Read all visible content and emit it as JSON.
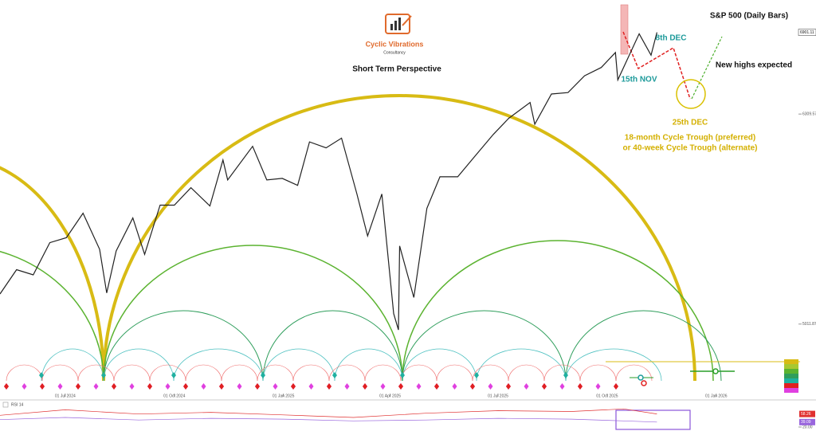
{
  "chart_data": [
    {
      "type": "line",
      "title": "S&P 500 (Daily Bars)",
      "subtitle": "Short Term Perspective",
      "brand": "Cyclic Vibrations",
      "brand_sub": "Consultancy",
      "annotations": [
        "8th DEC",
        "15th NOV",
        "New highs expected",
        "25th DEC",
        "18-month Cycle Trough (preferred)",
        "or 40-week Cycle Trough (alternate)"
      ],
      "log_scale": true,
      "xlim": [
        "2024-05-07",
        "2026-03-10"
      ],
      "xticks": [
        {
          "value": "2024-07-01",
          "label": "01 Jul 2024"
        },
        {
          "value": "2024-10-01",
          "label": "01 Oct 2024"
        },
        {
          "value": "2025-01-01",
          "label": "01 Jan 2025"
        },
        {
          "value": "2025-04-01",
          "label": "01 Apr 2025"
        },
        {
          "value": "2025-07-01",
          "label": "01 Jul 2025"
        },
        {
          "value": "2025-10-01",
          "label": "01 Oct 2025"
        },
        {
          "value": "2026-01-01",
          "label": "01 Jan 2026"
        }
      ],
      "ylim": [
        4620,
        7150
      ],
      "yticks": [
        6309.57,
        5011.87
      ],
      "x": [
        "2024-05-07",
        "2024-05-21",
        "2024-06-04",
        "2024-06-18",
        "2024-07-02",
        "2024-07-16",
        "2024-07-30",
        "2024-08-05",
        "2024-08-13",
        "2024-08-27",
        "2024-09-06",
        "2024-09-19",
        "2024-10-01",
        "2024-10-15",
        "2024-10-31",
        "2024-11-11",
        "2024-11-15",
        "2024-12-06",
        "2024-12-18",
        "2024-12-31",
        "2025-01-13",
        "2025-01-23",
        "2025-02-06",
        "2025-02-19",
        "2025-03-04",
        "2025-03-13",
        "2025-03-25",
        "2025-04-04",
        "2025-04-08",
        "2025-04-09",
        "2025-04-21",
        "2025-05-02",
        "2025-05-13",
        "2025-05-28",
        "2025-06-11",
        "2025-06-27",
        "2025-07-10",
        "2025-07-28",
        "2025-08-01",
        "2025-08-15",
        "2025-08-29",
        "2025-09-12",
        "2025-09-26",
        "2025-10-08",
        "2025-10-10",
        "2025-10-28",
        "2025-11-07",
        "2025-11-12"
      ],
      "series": [
        {
          "color": "#222222",
          "values": [
            5180,
            5320,
            5290,
            5480,
            5510,
            5660,
            5440,
            5186,
            5430,
            5630,
            5410,
            5710,
            5710,
            5820,
            5705,
            6000,
            5870,
            6090,
            5870,
            5880,
            5835,
            6120,
            6080,
            6145,
            5780,
            5520,
            5780,
            5070,
            4980,
            5460,
            5160,
            5690,
            5890,
            5890,
            6020,
            6170,
            6280,
            6390,
            6240,
            6450,
            6460,
            6580,
            6640,
            6750,
            6550,
            6890,
            6730,
            6901.11
          ]
        }
      ]
    },
    {
      "type": "line",
      "title": "RSI 14",
      "xlim": [
        "2024-05-07",
        "2026-03-10"
      ],
      "ylim": [
        20,
        80
      ],
      "yticks": [
        {
          "value": 20,
          "label": "20.00"
        }
      ],
      "x": [
        "2024-05-07",
        "2024-07-01",
        "2024-09-01",
        "2024-11-01",
        "2025-01-01",
        "2025-03-01",
        "2025-05-01",
        "2025-07-01",
        "2025-09-01",
        "2025-10-15",
        "2025-11-12"
      ],
      "series": [
        {
          "color": "#e03030",
          "values": [
            55,
            68,
            58,
            62,
            56,
            50,
            60,
            66,
            64,
            70,
            58.26
          ]
        },
        {
          "color": "#9966dd",
          "values": [
            45,
            50,
            44,
            48,
            46,
            42,
            44,
            48,
            46,
            42,
            39.09
          ]
        }
      ]
    }
  ]
}
